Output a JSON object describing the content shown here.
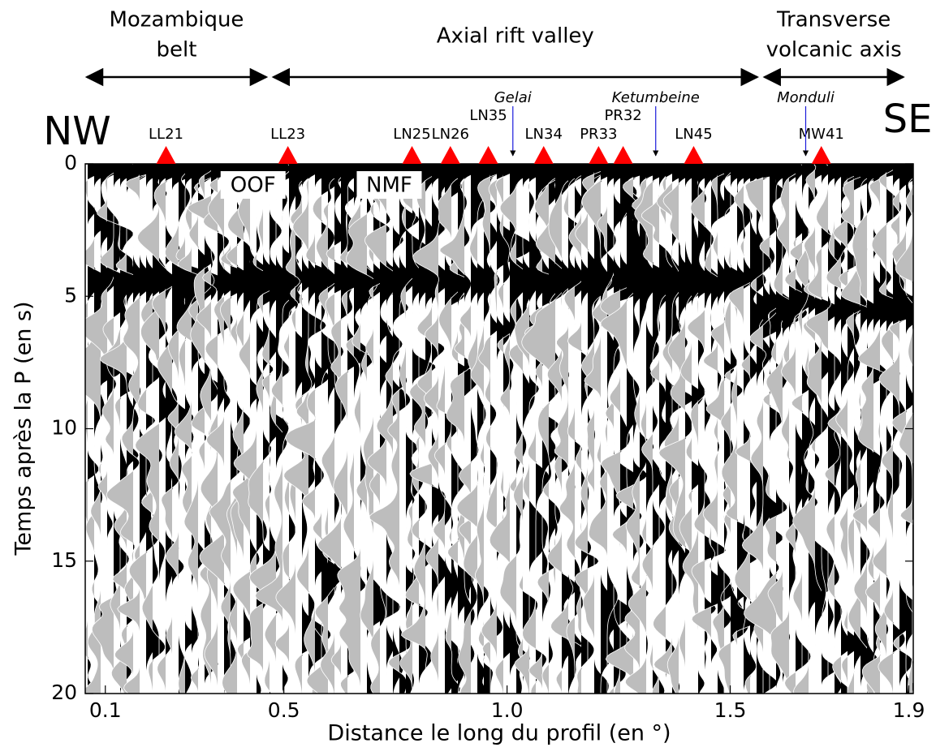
{
  "chart_data": {
    "type": "seismic-section",
    "xlabel": "Distance le long du profil (en °)",
    "ylabel": "Temps après la P (en s)",
    "xlim": [
      0.055,
      1.91
    ],
    "ylim": [
      0,
      20
    ],
    "y_inverted": true,
    "xticks": [
      0.1,
      0.5,
      {
        "value": 1,
        "label": "1.0"
      },
      1.5,
      1.9
    ],
    "yticks": [
      0,
      5,
      10,
      15,
      20
    ],
    "corner_labels": {
      "left": "NW",
      "right": "SE"
    },
    "regions": [
      {
        "label": [
          "Mozambique",
          "belt"
        ],
        "x": [
          0.055,
          0.464
        ]
      },
      {
        "label": [
          "Axial rift valley"
        ],
        "x": [
          0.473,
          1.564
        ]
      },
      {
        "label": [
          "Transverse",
          "volcanic axis"
        ],
        "x": [
          1.573,
          1.891
        ]
      }
    ],
    "station_color": "#ff0000",
    "stations": [
      {
        "name": "LL21",
        "x": 0.236
      },
      {
        "name": "LL23",
        "x": 0.509
      },
      {
        "name": "LN25",
        "x": 0.787
      },
      {
        "name": "LN26",
        "x": 0.873
      },
      {
        "name": "LN35",
        "x": 0.958
      },
      {
        "name": "LN34",
        "x": 1.082
      },
      {
        "name": "PR33",
        "x": 1.205
      },
      {
        "name": "PR32",
        "x": 1.26
      },
      {
        "name": "LN45",
        "x": 1.418
      },
      {
        "name": "MW41",
        "x": 1.704
      }
    ],
    "volcano_color": "#1a1adb",
    "volcanoes": [
      {
        "name": "Gelai",
        "x": 1.013
      },
      {
        "name": "Ketumbeine",
        "x": 1.333
      },
      {
        "name": "Monduli",
        "x": 1.669
      }
    ],
    "faults": [
      {
        "name": "OOF",
        "x": 0.431
      },
      {
        "name": "NMF",
        "x": 0.736
      }
    ]
  }
}
